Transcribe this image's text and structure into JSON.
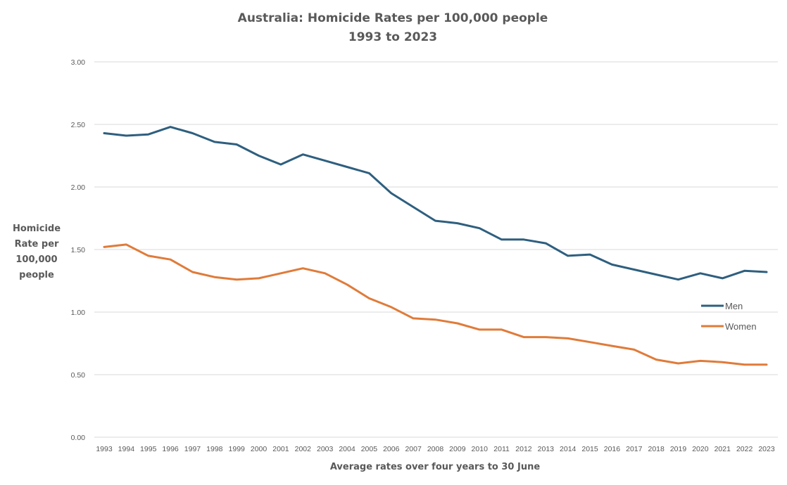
{
  "chart_data": {
    "type": "line",
    "title": "Australia: Homicide Rates per 100,000 people",
    "subtitle": "1993 to 2023",
    "xlabel": "Average rates over four years to 30 June",
    "ylabel_lines": [
      "Homicide",
      "Rate per",
      "100,000",
      "people"
    ],
    "ylabel": "Homicide Rate per 100,000 people",
    "ylim": [
      0,
      3
    ],
    "yticks": [
      0,
      0.5,
      1.0,
      1.5,
      2.0,
      2.5,
      3.0
    ],
    "ytick_labels": [
      "0.00",
      "0.50",
      "1.00",
      "1.50",
      "2.00",
      "2.50",
      "3.00"
    ],
    "grid": true,
    "legend_position": "right",
    "x": [
      "1993",
      "1994",
      "1995",
      "1996",
      "1997",
      "1998",
      "1999",
      "2000",
      "2001",
      "2002",
      "2003",
      "2004",
      "2005",
      "2006",
      "2007",
      "2008",
      "2009",
      "2010",
      "2011",
      "2012",
      "2013",
      "2014",
      "2015",
      "2016",
      "2017",
      "2018",
      "2019",
      "2020",
      "2021",
      "2022",
      "2023"
    ],
    "series": [
      {
        "name": "Men",
        "color": "#2e5f7f",
        "values": [
          2.43,
          2.41,
          2.42,
          2.48,
          2.43,
          2.36,
          2.34,
          2.25,
          2.18,
          2.26,
          2.21,
          2.16,
          2.11,
          1.95,
          1.84,
          1.73,
          1.71,
          1.67,
          1.58,
          1.58,
          1.55,
          1.45,
          1.46,
          1.38,
          1.34,
          1.3,
          1.26,
          1.31,
          1.27,
          1.33,
          1.32
        ]
      },
      {
        "name": "Women",
        "color": "#e07b39",
        "values": [
          1.52,
          1.54,
          1.45,
          1.42,
          1.32,
          1.28,
          1.26,
          1.27,
          1.31,
          1.35,
          1.31,
          1.22,
          1.11,
          1.04,
          0.95,
          0.94,
          0.91,
          0.86,
          0.86,
          0.8,
          0.8,
          0.79,
          0.76,
          0.73,
          0.7,
          0.62,
          0.59,
          0.61,
          0.6,
          0.58,
          0.58
        ]
      }
    ]
  }
}
